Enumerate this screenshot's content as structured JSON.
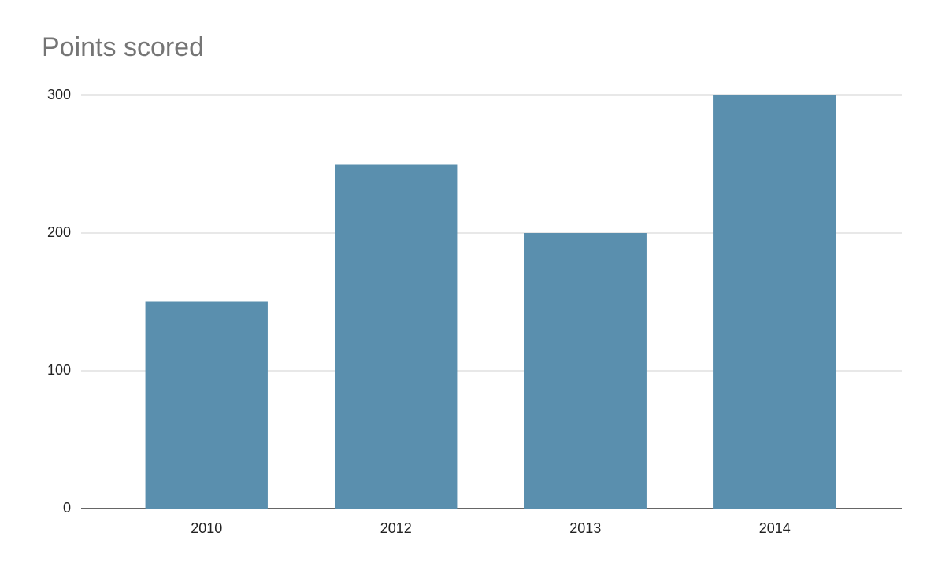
{
  "chart_data": {
    "type": "bar",
    "title": "Points scored",
    "categories": [
      "2010",
      "2012",
      "2013",
      "2014"
    ],
    "values": [
      150,
      250,
      200,
      300
    ],
    "color": "#5a8fae",
    "ylim": [
      0,
      300
    ],
    "yticks": [
      0,
      100,
      200,
      300
    ],
    "grid": true
  }
}
